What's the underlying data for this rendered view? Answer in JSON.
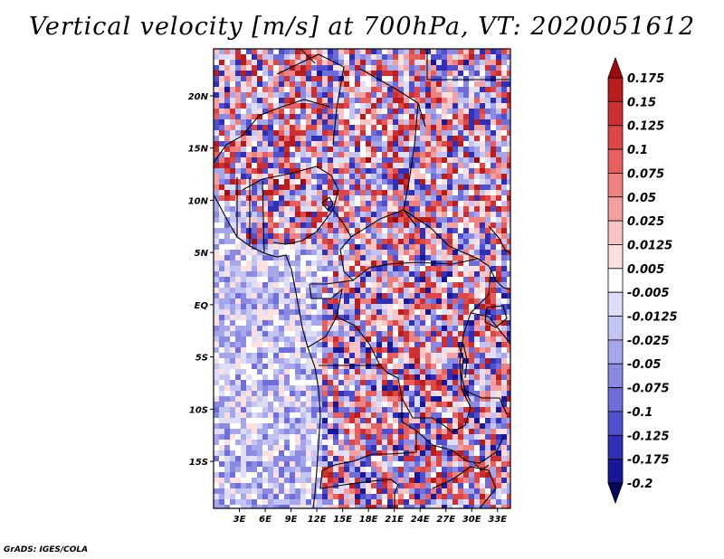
{
  "title": "Vertical velocity [m/s] at 700hPa, VT: 2020051612",
  "credit": "GrADS: IGES/COLA",
  "map": {
    "lon_range": [
      0,
      34.5
    ],
    "lat_range": [
      -19.5,
      24.5
    ],
    "lat_labels": [
      {
        "value": 20,
        "text": "20N"
      },
      {
        "value": 15,
        "text": "15N"
      },
      {
        "value": 10,
        "text": "10N"
      },
      {
        "value": 5,
        "text": "5N"
      },
      {
        "value": 0,
        "text": "EQ"
      },
      {
        "value": -5,
        "text": "5S"
      },
      {
        "value": -10,
        "text": "10S"
      },
      {
        "value": -15,
        "text": "15S"
      }
    ],
    "lon_labels": [
      {
        "value": 3,
        "text": "3E"
      },
      {
        "value": 6,
        "text": "6E"
      },
      {
        "value": 9,
        "text": "9E"
      },
      {
        "value": 12,
        "text": "12E"
      },
      {
        "value": 15,
        "text": "15E"
      },
      {
        "value": 18,
        "text": "18E"
      },
      {
        "value": 21,
        "text": "21E"
      },
      {
        "value": 24,
        "text": "24E"
      },
      {
        "value": 27,
        "text": "27E"
      },
      {
        "value": 30,
        "text": "30E"
      },
      {
        "value": 33,
        "text": "33E"
      }
    ]
  },
  "colorbar": {
    "labels": [
      "0.175",
      "0.15",
      "0.125",
      "0.1",
      "0.075",
      "0.05",
      "0.025",
      "0.0125",
      "0.005",
      "-0.005",
      "-0.0125",
      "-0.025",
      "-0.05",
      "-0.075",
      "-0.1",
      "-0.125",
      "-0.175",
      "-0.2"
    ],
    "colors": [
      "#a00a0a",
      "#b81c1c",
      "#cc3030",
      "#dc4848",
      "#e66060",
      "#ee8080",
      "#f4a0a0",
      "#f8c4c4",
      "#fce0e0",
      "#ffffff",
      "#dedef8",
      "#c4c4f2",
      "#a6a6ea",
      "#8a8ae2",
      "#6e6eda",
      "#5050ce",
      "#3030b4",
      "#181896",
      "#08085a"
    ]
  },
  "chart_data": {
    "type": "heatmap",
    "title": "Vertical velocity [m/s] at 700hPa, VT: 2020051612",
    "variable": "Vertical velocity",
    "units": "m/s",
    "level": "700hPa",
    "valid_time": "2020051612",
    "x_ticks": [
      "3E",
      "6E",
      "9E",
      "12E",
      "15E",
      "18E",
      "21E",
      "24E",
      "27E",
      "30E",
      "33E"
    ],
    "y_ticks": [
      "20N",
      "15N",
      "10N",
      "5N",
      "EQ",
      "5S",
      "10S",
      "15S"
    ],
    "color_levels": [
      -0.2,
      -0.175,
      -0.125,
      -0.1,
      -0.075,
      -0.05,
      -0.025,
      -0.0125,
      -0.005,
      0.005,
      0.0125,
      0.025,
      0.05,
      0.075,
      0.1,
      0.125,
      0.15,
      0.175
    ]
  }
}
